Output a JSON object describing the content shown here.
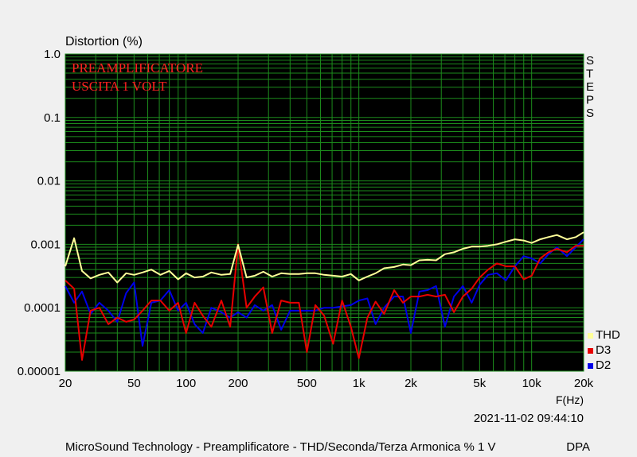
{
  "chart_data": {
    "type": "line",
    "title": "Distortion (%)",
    "annotation_lines": [
      "PREAMPLIFICATORE",
      "USCITA 1 VOLT"
    ],
    "xlabel": "F(Hz)",
    "x_scale": "log",
    "y_scale": "log",
    "xlim": [
      20,
      20000
    ],
    "ylim": [
      1e-05,
      1.0
    ],
    "grid": true,
    "plot_background": "#000000",
    "grid_color": "#1c8c1c",
    "x_tick_labels": [
      {
        "value": 20,
        "label": "20"
      },
      {
        "value": 50,
        "label": "50"
      },
      {
        "value": 100,
        "label": "100"
      },
      {
        "value": 200,
        "label": "200"
      },
      {
        "value": 500,
        "label": "500"
      },
      {
        "value": 1000,
        "label": "1k"
      },
      {
        "value": 2000,
        "label": "2k"
      },
      {
        "value": 5000,
        "label": "5k"
      },
      {
        "value": 10000,
        "label": "10k"
      },
      {
        "value": 20000,
        "label": "20k"
      }
    ],
    "y_tick_labels": [
      {
        "value": 1.0,
        "label": "1.0"
      },
      {
        "value": 0.1,
        "label": "0.1"
      },
      {
        "value": 0.01,
        "label": "0.01"
      },
      {
        "value": 0.001,
        "label": "0.001"
      },
      {
        "value": 0.0001,
        "label": "0.0001"
      },
      {
        "value": 1e-05,
        "label": "0.00001"
      }
    ],
    "steps_label": [
      "S",
      "T",
      "E",
      "P",
      "S"
    ],
    "legend_position": "bottom-right",
    "series": [
      {
        "name": "THD",
        "color": "#ffff99",
        "x": [
          20,
          22.5,
          25,
          28,
          31.5,
          35.5,
          40,
          45,
          50,
          56,
          63,
          71,
          80,
          90,
          100,
          112,
          125,
          140,
          160,
          180,
          200,
          224,
          250,
          280,
          315,
          355,
          400,
          450,
          500,
          560,
          630,
          710,
          800,
          900,
          1000,
          1120,
          1250,
          1400,
          1600,
          1800,
          2000,
          2240,
          2500,
          2800,
          3150,
          3550,
          4000,
          4500,
          5000,
          5600,
          6300,
          7100,
          8000,
          9000,
          10000,
          11200,
          12500,
          14000,
          16000,
          18000,
          20000
        ],
        "y": [
          0.00045,
          0.00125,
          0.00038,
          0.00029,
          0.00033,
          0.00036,
          0.00025,
          0.00035,
          0.00033,
          0.00036,
          0.0004,
          0.00033,
          0.00038,
          0.00028,
          0.00035,
          0.0003,
          0.00031,
          0.00036,
          0.00033,
          0.00034,
          0.00098,
          0.0003,
          0.00032,
          0.00037,
          0.00031,
          0.00035,
          0.00034,
          0.00034,
          0.00035,
          0.00035,
          0.00033,
          0.00032,
          0.00031,
          0.00034,
          0.00027,
          0.00031,
          0.00035,
          0.00042,
          0.00044,
          0.00048,
          0.00047,
          0.00056,
          0.00057,
          0.00056,
          0.0007,
          0.00075,
          0.00085,
          0.00092,
          0.00092,
          0.00095,
          0.001,
          0.0011,
          0.0012,
          0.00115,
          0.00105,
          0.0012,
          0.0013,
          0.0014,
          0.0012,
          0.0013,
          0.00155
        ]
      },
      {
        "name": "D3",
        "color": "#e80000",
        "x": [
          20,
          22.5,
          25,
          28,
          31.5,
          35.5,
          40,
          45,
          50,
          56,
          63,
          71,
          80,
          90,
          100,
          112,
          125,
          140,
          160,
          180,
          200,
          224,
          250,
          280,
          315,
          355,
          400,
          450,
          500,
          560,
          630,
          710,
          800,
          900,
          1000,
          1120,
          1250,
          1400,
          1600,
          1800,
          2000,
          2240,
          2500,
          2800,
          3150,
          3550,
          4000,
          4500,
          5000,
          5600,
          6300,
          7100,
          8000,
          9000,
          10000,
          11200,
          12500,
          14000,
          16000,
          18000,
          20000
        ],
        "y": [
          0.00027,
          0.0002,
          1.5e-05,
          9e-05,
          0.0001,
          5.5e-05,
          7e-05,
          6e-05,
          6.5e-05,
          9e-05,
          0.00013,
          0.00013,
          9e-05,
          0.00012,
          4e-05,
          0.00012,
          7.5e-05,
          5e-05,
          0.00013,
          5e-05,
          0.001,
          0.0001,
          0.00015,
          0.00021,
          4e-05,
          0.00013,
          0.00012,
          0.00012,
          2e-05,
          0.00011,
          7.5e-05,
          2.7e-05,
          0.00013,
          5e-05,
          1.6e-05,
          7e-05,
          0.000125,
          8e-05,
          0.00019,
          0.00012,
          0.00015,
          0.00015,
          0.00016,
          0.00015,
          0.00016,
          8.5e-05,
          0.00015,
          0.0002,
          0.0003,
          0.0004,
          0.0005,
          0.00045,
          0.00045,
          0.00028,
          0.00032,
          0.0006,
          0.00075,
          0.00085,
          0.00075,
          0.00095,
          0.00095
        ]
      },
      {
        "name": "D2",
        "color": "#0000e8",
        "x": [
          20,
          22.5,
          25,
          28,
          31.5,
          35.5,
          40,
          45,
          50,
          56,
          63,
          71,
          80,
          90,
          100,
          112,
          125,
          140,
          160,
          180,
          200,
          224,
          250,
          280,
          315,
          355,
          400,
          450,
          500,
          560,
          630,
          710,
          800,
          900,
          1000,
          1120,
          1250,
          1400,
          1600,
          1800,
          2000,
          2240,
          2500,
          2800,
          3150,
          3550,
          4000,
          4500,
          5000,
          5600,
          6300,
          7100,
          8000,
          9000,
          10000,
          11200,
          12500,
          14000,
          16000,
          18000,
          20000
        ],
        "y": [
          0.00022,
          0.00012,
          0.00018,
          8e-05,
          0.00012,
          9e-05,
          6e-05,
          0.00017,
          0.00025,
          2.5e-05,
          0.00012,
          0.00013,
          0.00019,
          9e-05,
          0.00012,
          5.5e-05,
          4e-05,
          0.0001,
          8.5e-05,
          7e-05,
          8.5e-05,
          7e-05,
          0.00011,
          9e-05,
          0.00011,
          4.5e-05,
          9e-05,
          9e-05,
          9e-05,
          9e-05,
          0.0001,
          0.0001,
          0.000105,
          0.00011,
          0.00013,
          0.00014,
          5.5e-05,
          0.0001,
          0.00015,
          0.00015,
          4e-05,
          0.00018,
          0.00019,
          0.00022,
          5e-05,
          0.00015,
          0.00022,
          0.00012,
          0.00023,
          0.00033,
          0.00035,
          0.00027,
          0.00045,
          0.00065,
          0.0006,
          0.0005,
          0.0007,
          0.0009,
          0.00065,
          0.0009,
          0.0012
        ]
      }
    ]
  },
  "timestamp": "2021-11-02 09:44:10",
  "footer": {
    "caption": "MicroSound Technology - Preamplificatore - THD/Seconda/Terza Armonica % 1 V",
    "tag": "DPA"
  }
}
